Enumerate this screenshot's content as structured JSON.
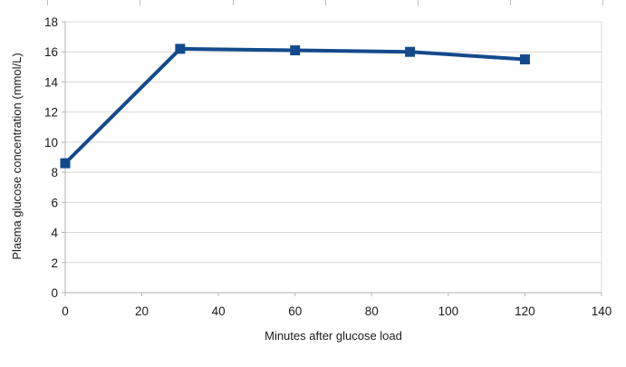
{
  "chart_data": {
    "type": "line",
    "title": "",
    "xlabel": "Minutes after glucose load",
    "ylabel": "Plasma glucose concentration (mmol/L)",
    "x": [
      0,
      30,
      60,
      90,
      120
    ],
    "values": [
      8.6,
      16.2,
      16.1,
      16.0,
      15.5
    ],
    "xlim": [
      0,
      140
    ],
    "ylim": [
      0,
      18
    ],
    "xticks": [
      0,
      20,
      40,
      60,
      80,
      100,
      120,
      140
    ],
    "yticks": [
      0,
      2,
      4,
      6,
      8,
      10,
      12,
      14,
      16,
      18
    ],
    "grid": true,
    "legend": "none",
    "marker": "square",
    "colors": {
      "series": "#134A8C",
      "gridline": "#D9D9D9",
      "axis": "#B3B3B3",
      "text": "#1A1A1A",
      "background": "#FFFFFF"
    }
  }
}
